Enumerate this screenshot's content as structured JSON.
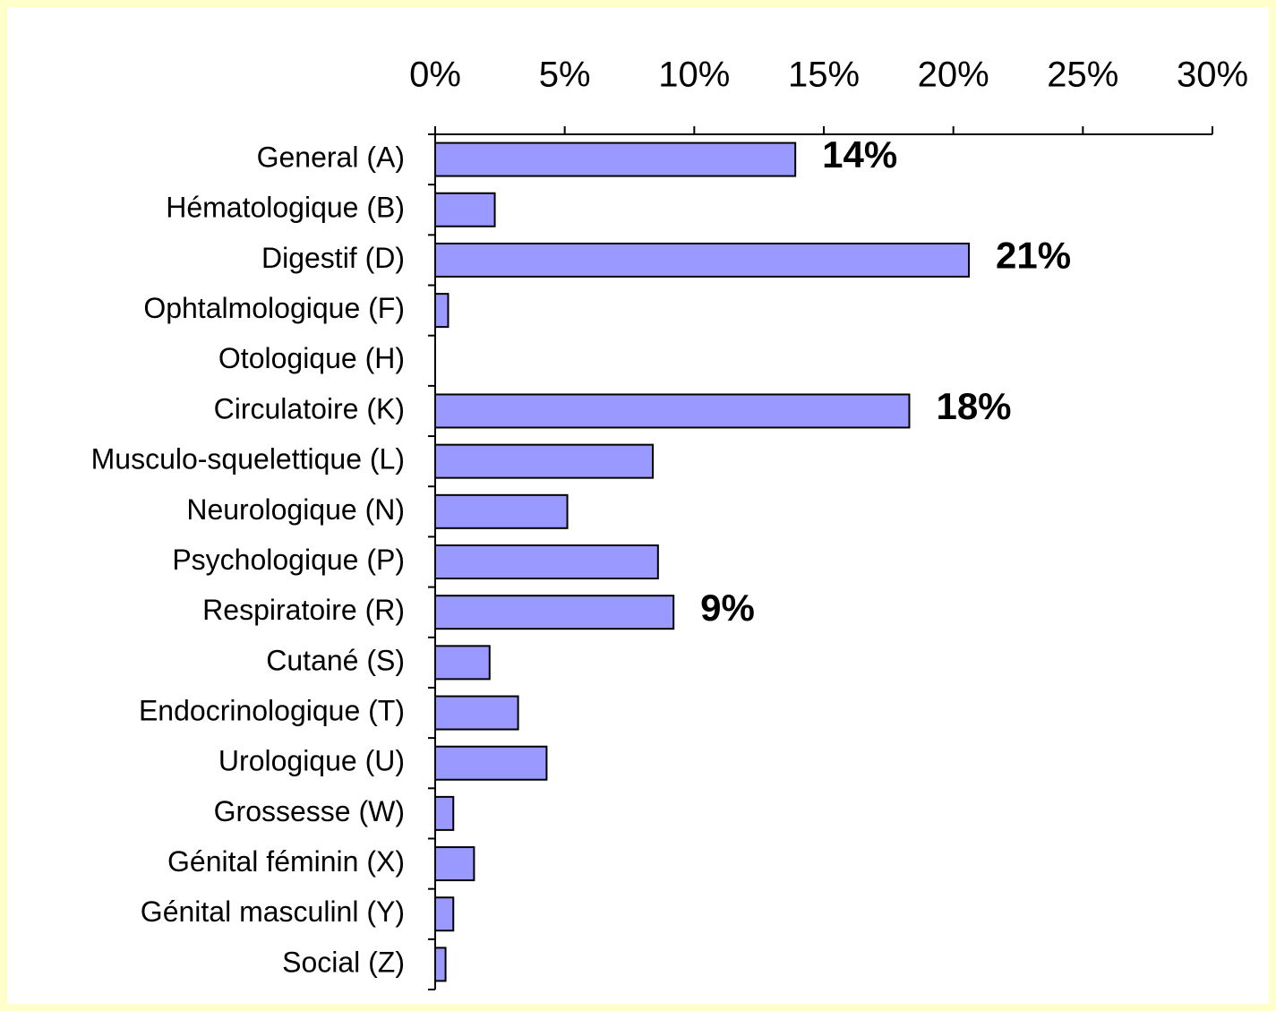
{
  "chart_data": {
    "type": "barh",
    "categories": [
      "General (A)",
      "Hématologique (B)",
      "Digestif (D)",
      "Ophtalmologique (F)",
      "Otologique (H)",
      "Circulatoire (K)",
      "Musculo-squelettique (L)",
      "Neurologique (N)",
      "Psychologique (P)",
      "Respiratoire (R)",
      "Cutané (S)",
      "Endocrinologique (T)",
      "Urologique (U)",
      "Grossesse (W)",
      "Génital féminin (X)",
      "Génital masculinl (Y)",
      "Social (Z)"
    ],
    "values": [
      13.9,
      2.3,
      20.6,
      0.5,
      0,
      18.3,
      8.4,
      5.1,
      8.6,
      9.2,
      2.1,
      3.2,
      4.3,
      0.7,
      1.5,
      0.7,
      0.4
    ],
    "value_labels": [
      "14%",
      null,
      "21%",
      null,
      null,
      "18%",
      null,
      null,
      null,
      "9%",
      null,
      null,
      null,
      null,
      null,
      null,
      null
    ],
    "color": "#9999ff",
    "xlim": [
      0,
      30
    ],
    "xticks": [
      {
        "value": 0,
        "label": "0%"
      },
      {
        "value": 5,
        "label": "5%"
      },
      {
        "value": 10,
        "label": "10%"
      },
      {
        "value": 15,
        "label": "15%"
      },
      {
        "value": 20,
        "label": "20%"
      },
      {
        "value": 25,
        "label": "25%"
      },
      {
        "value": 30,
        "label": "30%"
      }
    ],
    "axis_position": "top"
  }
}
